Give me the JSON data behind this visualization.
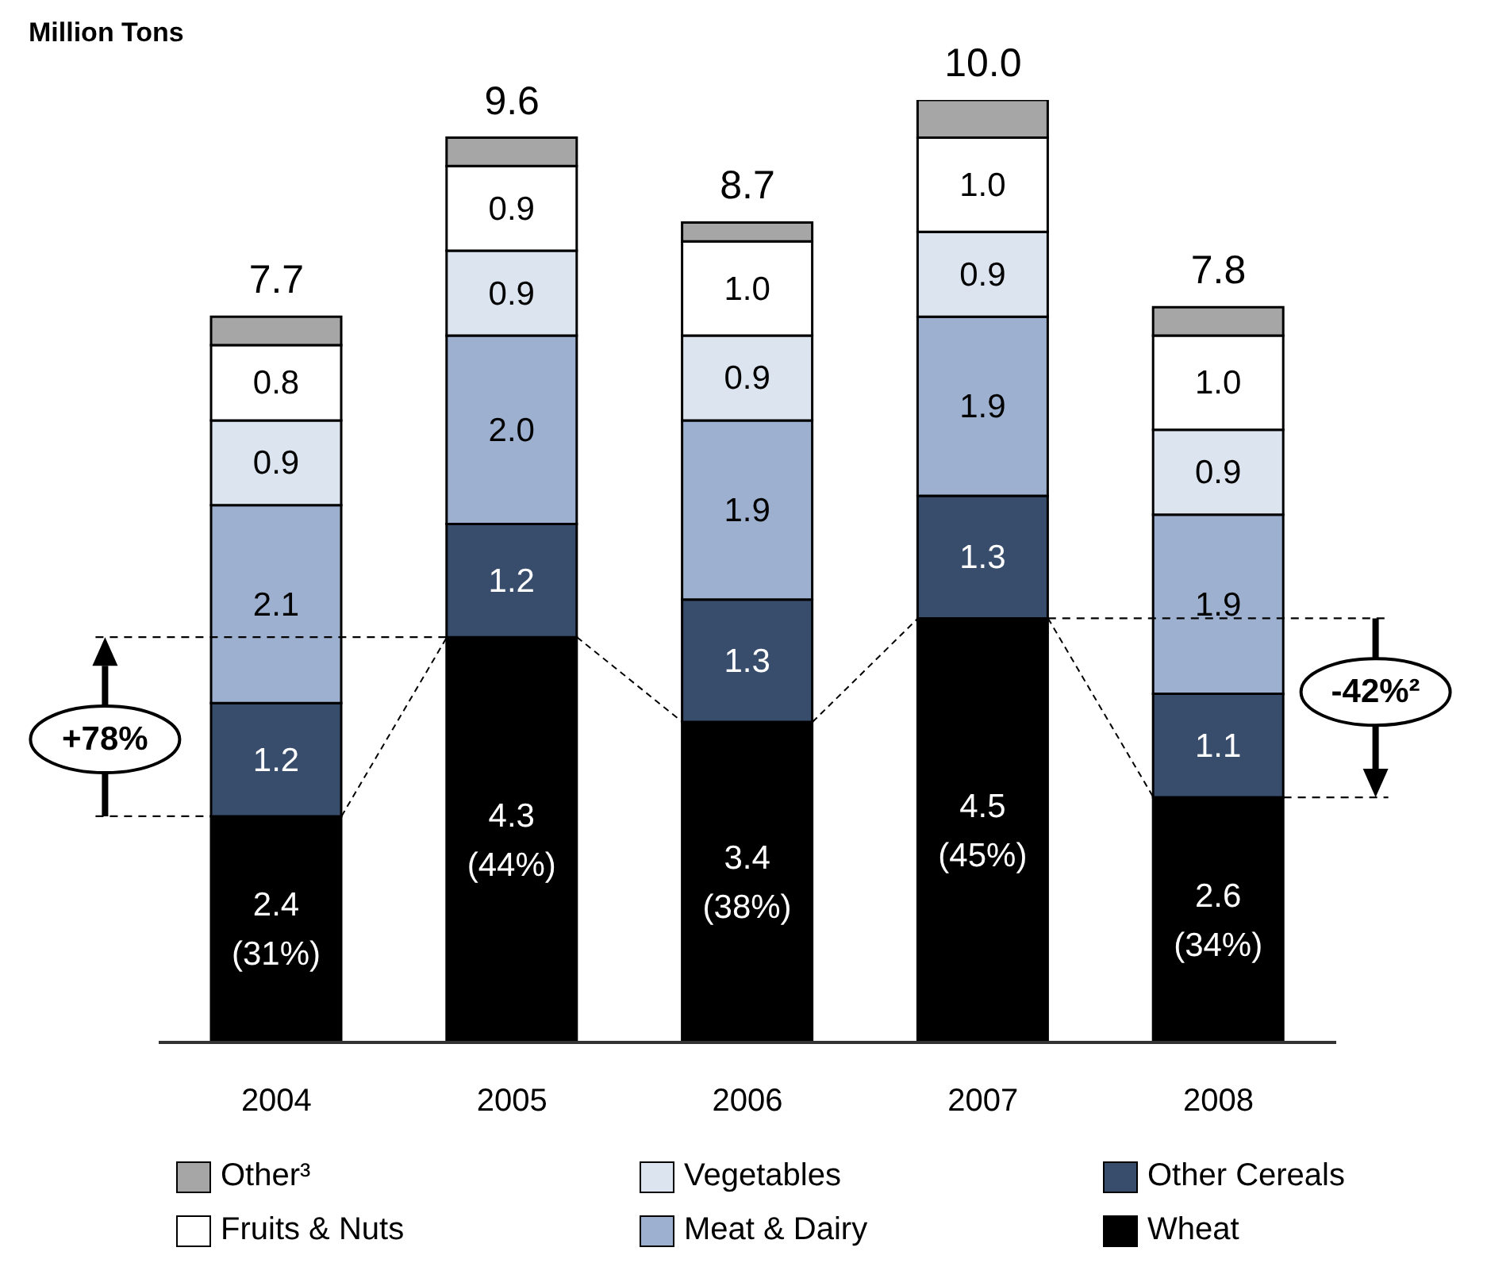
{
  "chart_data": {
    "type": "bar",
    "stacked": true,
    "ylabel": "Million Tons",
    "categories": [
      "2004",
      "2005",
      "2006",
      "2007",
      "2008"
    ],
    "series": [
      {
        "name": "Wheat",
        "color": "#000000",
        "values": [
          2.4,
          4.3,
          3.4,
          4.5,
          2.6
        ],
        "value_labels": [
          "2.4\n(31%)",
          "4.3\n(44%)",
          "3.4\n(38%)",
          "4.5\n(45%)",
          "2.6\n(34%)"
        ]
      },
      {
        "name": "Other Cereals",
        "color": "#384c6c",
        "values": [
          1.2,
          1.2,
          1.3,
          1.3,
          1.1
        ],
        "value_labels": [
          "1.2",
          "1.2",
          "1.3",
          "1.3",
          "1.1"
        ]
      },
      {
        "name": "Meat & Dairy",
        "color": "#9db0cf",
        "values": [
          2.1,
          2.0,
          1.9,
          1.9,
          1.9
        ],
        "value_labels": [
          "2.1",
          "2.0",
          "1.9",
          "1.9",
          "1.9"
        ]
      },
      {
        "name": "Vegetables",
        "color": "#dce4ef",
        "values": [
          0.9,
          0.9,
          0.9,
          0.9,
          0.9
        ],
        "value_labels": [
          "0.9",
          "0.9",
          "0.9",
          "0.9",
          "0.9"
        ]
      },
      {
        "name": "Fruits & Nuts",
        "color": "#ffffff",
        "values": [
          0.8,
          0.9,
          1.0,
          1.0,
          1.0
        ],
        "value_labels": [
          "0.8",
          "0.9",
          "1.0",
          "1.0",
          "1.0"
        ]
      },
      {
        "name": "Other³",
        "color": "#a6a6a6",
        "values": [
          0.3,
          0.3,
          0.2,
          0.4,
          0.3
        ]
      }
    ],
    "totals": [
      "7.7",
      "9.6",
      "8.7",
      "10.0",
      "7.8"
    ],
    "annotations": [
      "+78%",
      "-42%²"
    ],
    "legend": "bottom"
  }
}
